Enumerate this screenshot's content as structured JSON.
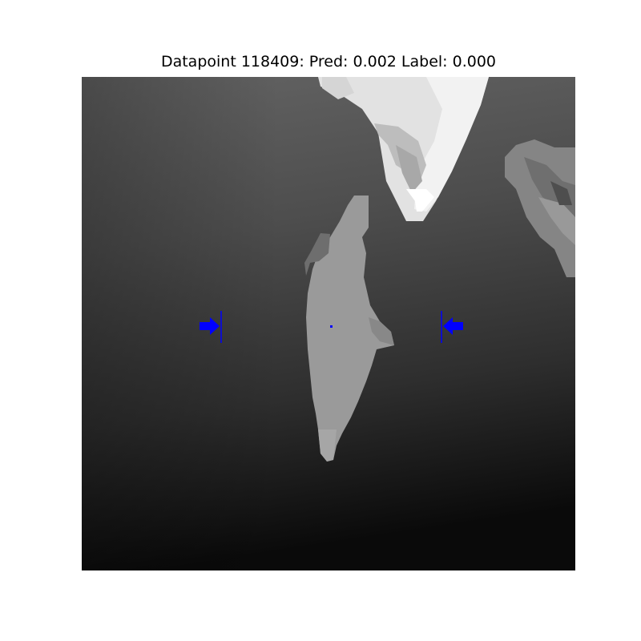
{
  "figure": {
    "title": "Datapoint 118409: Pred: 0.002 Label: 0.000"
  },
  "colors": {
    "marker": "#0000ff",
    "background": "#ffffff"
  }
}
